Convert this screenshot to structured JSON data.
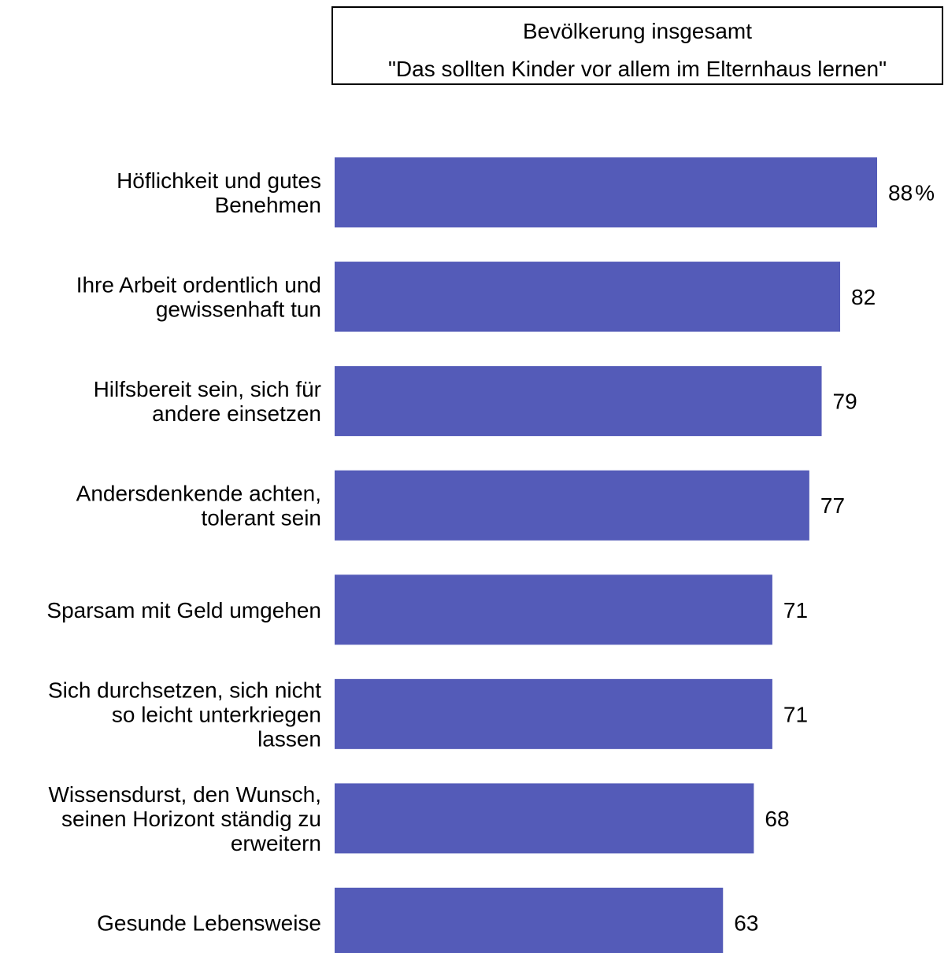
{
  "title_box": {
    "line1": "Bevölkerung insgesamt",
    "line2": "\"Das sollten Kinder vor allem im Elternhaus lernen\""
  },
  "colors": {
    "bar": "#545bb8",
    "text": "#000000",
    "background": "#ffffff"
  },
  "chart_data": {
    "type": "bar",
    "orientation": "horizontal",
    "title": "Bevölkerung insgesamt",
    "subtitle": "\"Das sollten Kinder vor allem im Elternhaus lernen\"",
    "categories": [
      [
        "Höflichkeit und gutes",
        "Benehmen"
      ],
      [
        "Ihre Arbeit ordentlich und",
        "gewissenhaft tun"
      ],
      [
        "Hilfsbereit sein, sich für",
        "andere einsetzen"
      ],
      [
        "Andersdenkende achten,",
        "tolerant sein"
      ],
      [
        "Sparsam mit Geld umgehen"
      ],
      [
        "Sich durchsetzen, sich nicht",
        "so leicht unterkriegen",
        "lassen"
      ],
      [
        "Wissensdurst, den Wunsch,",
        "seinen Horizont ständig zu",
        "erweitern"
      ],
      [
        "Gesunde Lebensweise"
      ]
    ],
    "values": [
      88,
      82,
      79,
      77,
      71,
      71,
      68,
      63
    ],
    "value_labels": [
      "88",
      "82",
      "79",
      "77",
      "71",
      "71",
      "68",
      "63"
    ],
    "first_value_suffix": "%",
    "xlim": [
      0,
      88
    ],
    "grid": false,
    "legend": "none"
  }
}
